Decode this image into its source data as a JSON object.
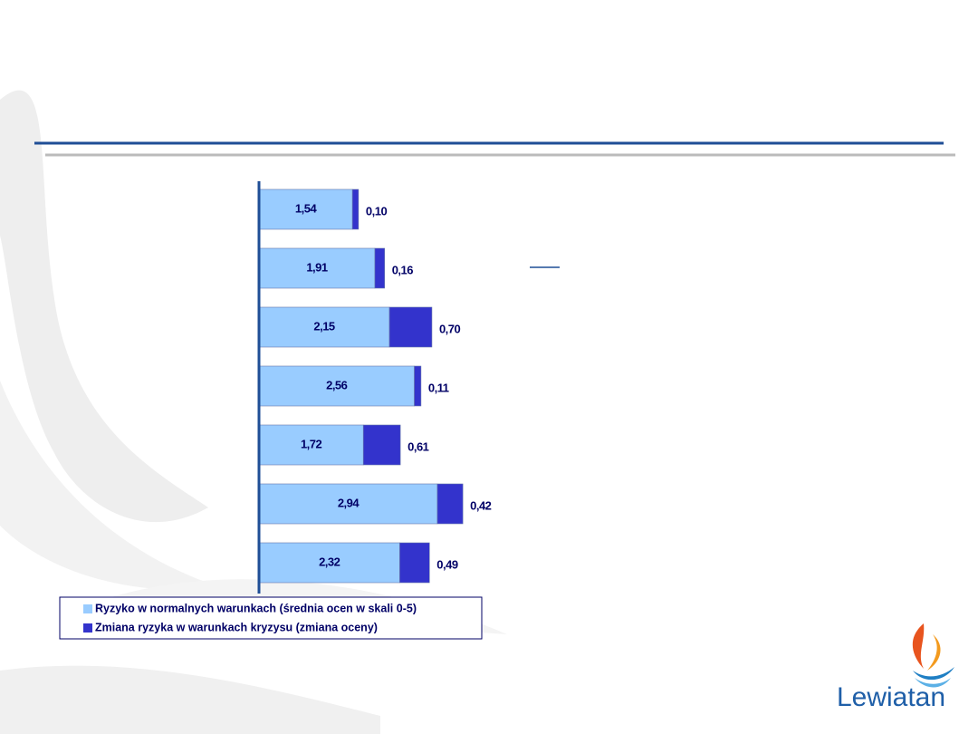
{
  "chart_data": {
    "type": "stacked-bar-horizontal",
    "categories": [
      null,
      null,
      null,
      null,
      null,
      null,
      null
    ],
    "series": [
      {
        "name": "Ryzyko w normalnych warunkach (średnia ocen w skali 0-5)",
        "color": "#99ccff",
        "values": [
          1.54,
          1.91,
          2.15,
          2.56,
          1.72,
          2.94,
          2.32
        ],
        "value_labels": [
          "1,54",
          "1,91",
          "2,15",
          "2,56",
          "1,72",
          "2,94",
          "2,32"
        ]
      },
      {
        "name": "Zmiana ryzyka w warunkach kryzysu (zmiana oceny)",
        "color": "#3333cc",
        "values": [
          0.1,
          0.16,
          0.7,
          0.11,
          0.61,
          0.42,
          0.49
        ],
        "value_labels": [
          "0,10",
          "0,16",
          "0,70",
          "0,11",
          "0,61",
          "0,42",
          "0,49"
        ]
      }
    ],
    "xlim": [
      0,
      4
    ]
  },
  "logo": {
    "text": "Lewiatan"
  }
}
